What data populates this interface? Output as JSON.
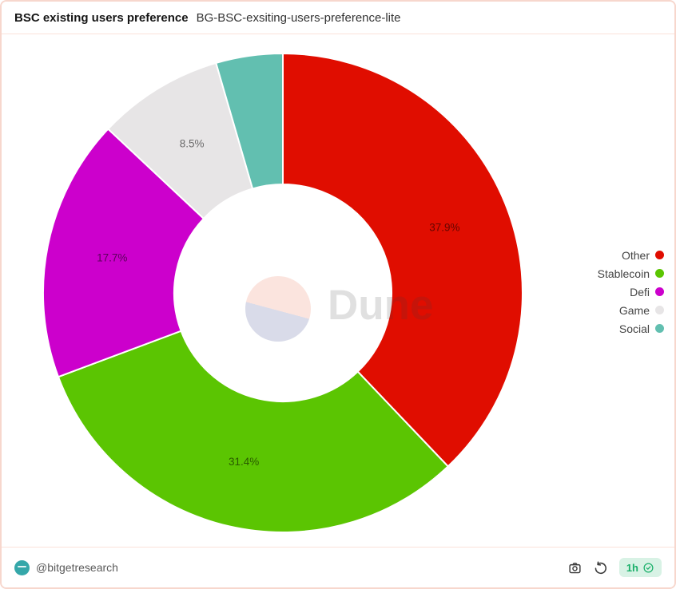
{
  "header": {
    "title": "BSC existing users preference",
    "subtitle": "BG-BSC-exsiting-users-preference-lite"
  },
  "chart_data": {
    "type": "pie",
    "donut": true,
    "title": "BSC existing users preference",
    "legend_position": "right",
    "categories": [
      "Other",
      "Stablecoin",
      "Defi",
      "Game",
      "Social"
    ],
    "values": [
      37.9,
      31.4,
      17.7,
      8.5,
      4.5
    ],
    "series": [
      {
        "name": "Other",
        "value": 37.9,
        "label": "37.9%",
        "color": "#e00d00"
      },
      {
        "name": "Stablecoin",
        "value": 31.4,
        "label": "31.4%",
        "color": "#5bc502"
      },
      {
        "name": "Defi",
        "value": 17.7,
        "label": "17.7%",
        "color": "#cc00cc"
      },
      {
        "name": "Game",
        "value": 8.5,
        "label": "8.5%",
        "color": "#e7e5e6"
      },
      {
        "name": "Social",
        "value": 4.5,
        "label": "",
        "color": "#62bfb0"
      }
    ]
  },
  "watermark": {
    "text": "Dune"
  },
  "footer": {
    "author": "@bitgetresearch",
    "badge": "1h"
  },
  "colors": {
    "card_border": "#f7d7cd",
    "badge_bg": "#d8f2e5",
    "badge_text": "#1ab06a",
    "slice_label": "rgba(0,0,0,0.55)"
  }
}
